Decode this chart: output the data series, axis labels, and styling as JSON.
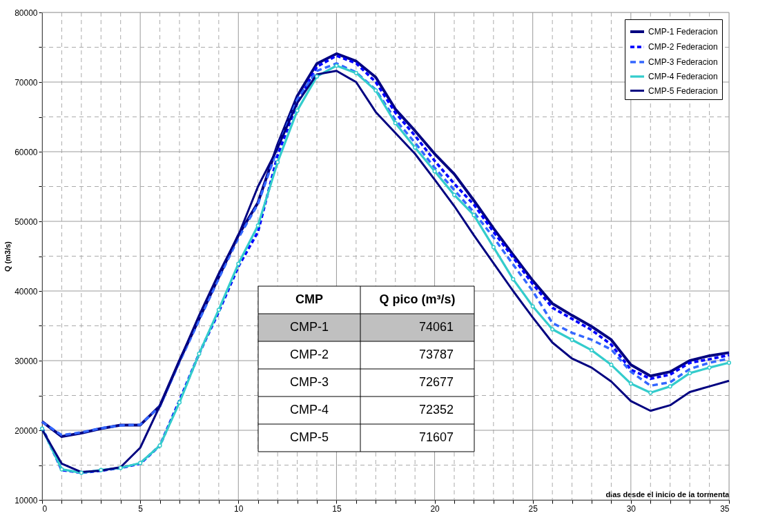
{
  "chart_data": {
    "type": "line",
    "xlabel": "dias desde el inicio de la tormenta",
    "ylabel": "Q (m3/s)",
    "x": [
      0,
      1,
      2,
      3,
      4,
      5,
      6,
      7,
      8,
      9,
      10,
      11,
      12,
      13,
      14,
      15,
      16,
      17,
      18,
      19,
      20,
      21,
      22,
      23,
      24,
      25,
      26,
      27,
      28,
      29,
      30,
      31,
      32,
      33,
      34,
      35
    ],
    "series": [
      {
        "name": "CMP-1 Federacion",
        "color": "#000080",
        "line_style": "solid",
        "marker": "none",
        "values": [
          21250,
          19100,
          19600,
          20250,
          20750,
          20750,
          23500,
          30000,
          36000,
          42000,
          48000,
          52700,
          61000,
          68000,
          72650,
          74061,
          73000,
          70700,
          66100,
          63000,
          59700,
          56800,
          53000,
          49000,
          45200,
          41500,
          38200,
          36500,
          34900,
          33000,
          29400,
          27800,
          28400,
          30000,
          30700,
          31150
        ]
      },
      {
        "name": "CMP-2 Federacion",
        "color": "#0000ff",
        "line_style": "dashed",
        "marker": "none",
        "values": [
          20400,
          14300,
          13900,
          14200,
          14600,
          15200,
          17800,
          24300,
          31000,
          37000,
          43500,
          48500,
          59500,
          67000,
          72200,
          73787,
          72700,
          70000,
          65600,
          62300,
          58700,
          55400,
          52400,
          48500,
          44800,
          41000,
          37600,
          36000,
          34400,
          32300,
          28700,
          27400,
          28000,
          29700,
          30200,
          30800
        ]
      },
      {
        "name": "CMP-3 Federacion",
        "color": "#3366ff",
        "line_style": "dashed",
        "marker": "none",
        "values": [
          21200,
          19300,
          19700,
          20300,
          20700,
          20800,
          23400,
          29800,
          35800,
          41800,
          47600,
          52500,
          60500,
          67500,
          71600,
          72677,
          71400,
          68900,
          64600,
          61300,
          57700,
          54500,
          51300,
          47700,
          43800,
          40000,
          35400,
          34000,
          33000,
          31600,
          28400,
          26400,
          26900,
          28800,
          29700,
          30300
        ]
      },
      {
        "name": "CMP-4 Federacion",
        "color": "#33cccc",
        "line_style": "solid",
        "marker": "circle",
        "values": [
          20250,
          14400,
          13900,
          14300,
          14600,
          15300,
          17800,
          24000,
          31000,
          37300,
          43900,
          49400,
          58500,
          65900,
          70800,
          72352,
          71300,
          68800,
          64100,
          60600,
          57200,
          53800,
          50900,
          46300,
          41700,
          37800,
          34500,
          33000,
          31500,
          29400,
          26700,
          25400,
          26300,
          28200,
          29000,
          29700
        ]
      },
      {
        "name": "CMP-5 Federacion",
        "color": "#000080",
        "line_style": "solid",
        "marker": "none",
        "values": [
          20100,
          15200,
          14000,
          14200,
          14700,
          17500,
          23500,
          30000,
          36500,
          42500,
          48000,
          55000,
          60500,
          67000,
          71100,
          71607,
          70000,
          65700,
          62700,
          59700,
          56000,
          52200,
          48000,
          44000,
          40000,
          36200,
          32600,
          30300,
          29000,
          27000,
          24200,
          22800,
          23600,
          25500,
          26300,
          27100
        ]
      }
    ],
    "xlim": [
      0,
      35
    ],
    "xticks": [
      0,
      {
        "value": 1,
        "label": null
      },
      {
        "value": 2,
        "label": null
      },
      {
        "value": 3,
        "label": null
      },
      {
        "value": 4,
        "label": null
      },
      5,
      {
        "value": 6,
        "label": null
      },
      {
        "value": 7,
        "label": null
      },
      {
        "value": 8,
        "label": null
      },
      {
        "value": 9,
        "label": null
      },
      10,
      {
        "value": 11,
        "label": null
      },
      {
        "value": 12,
        "label": null
      },
      {
        "value": 13,
        "label": null
      },
      {
        "value": 14,
        "label": null
      },
      15,
      {
        "value": 16,
        "label": null
      },
      {
        "value": 17,
        "label": null
      },
      {
        "value": 18,
        "label": null
      },
      {
        "value": 19,
        "label": null
      },
      20,
      {
        "value": 21,
        "label": null
      },
      {
        "value": 22,
        "label": null
      },
      {
        "value": 23,
        "label": null
      },
      {
        "value": 24,
        "label": null
      },
      25,
      {
        "value": 26,
        "label": null
      },
      {
        "value": 27,
        "label": null
      },
      {
        "value": 28,
        "label": null
      },
      {
        "value": 29,
        "label": null
      },
      30,
      {
        "value": 31,
        "label": null
      },
      {
        "value": 32,
        "label": null
      },
      {
        "value": 33,
        "label": null
      },
      {
        "value": 34,
        "label": null
      },
      35
    ],
    "ylim": [
      10000,
      80000
    ],
    "yticks": [
      10000,
      {
        "value": 15000,
        "label": null
      },
      20000,
      {
        "value": 25000,
        "label": null
      },
      30000,
      {
        "value": 35000,
        "label": null
      },
      40000,
      {
        "value": 45000,
        "label": null
      },
      50000,
      {
        "value": 55000,
        "label": null
      },
      60000,
      {
        "value": 65000,
        "label": null
      },
      70000,
      {
        "value": 75000,
        "label": null
      },
      80000
    ],
    "grid": true,
    "legend": "top right",
    "annotations": [
      "CMP",
      "Q pico (m³/s)",
      "CMP-1",
      "74061",
      "CMP-2",
      "73787",
      "CMP-3",
      "72677",
      "CMP-4",
      "72352",
      "CMP-5",
      "71607"
    ]
  }
}
